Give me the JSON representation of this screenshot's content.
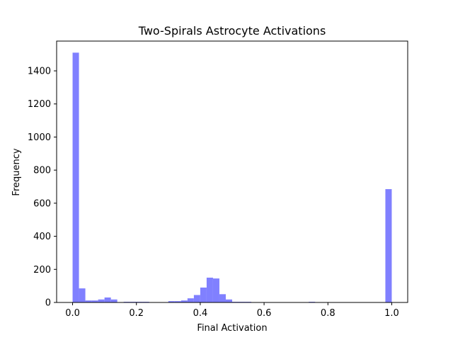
{
  "chart_data": {
    "type": "bar",
    "title": "Two-Spirals Astrocyte Activations",
    "xlabel": "Final Activation",
    "ylabel": "Frequency",
    "xlim": [
      -0.05,
      1.05
    ],
    "ylim": [
      0,
      1580
    ],
    "xticks": [
      0.0,
      0.2,
      0.4,
      0.6,
      0.8,
      1.0
    ],
    "xtick_labels": [
      "0.0",
      "0.2",
      "0.4",
      "0.6",
      "0.8",
      "1.0"
    ],
    "yticks": [
      0,
      200,
      400,
      600,
      800,
      1000,
      1200,
      1400
    ],
    "ytick_labels": [
      "0",
      "200",
      "400",
      "600",
      "800",
      "1000",
      "1200",
      "1400"
    ],
    "bins": 50,
    "bin_range": [
      0.0,
      1.0
    ],
    "bar_color": "#8080ff",
    "grid": false,
    "values": [
      1510,
      85,
      12,
      12,
      18,
      30,
      18,
      0,
      4,
      4,
      4,
      4,
      0,
      0,
      0,
      8,
      8,
      12,
      25,
      45,
      90,
      150,
      145,
      50,
      18,
      4,
      4,
      4,
      0,
      0,
      0,
      0,
      0,
      0,
      0,
      0,
      0,
      4,
      0,
      0,
      0,
      0,
      0,
      0,
      0,
      0,
      0,
      0,
      0,
      685
    ]
  }
}
